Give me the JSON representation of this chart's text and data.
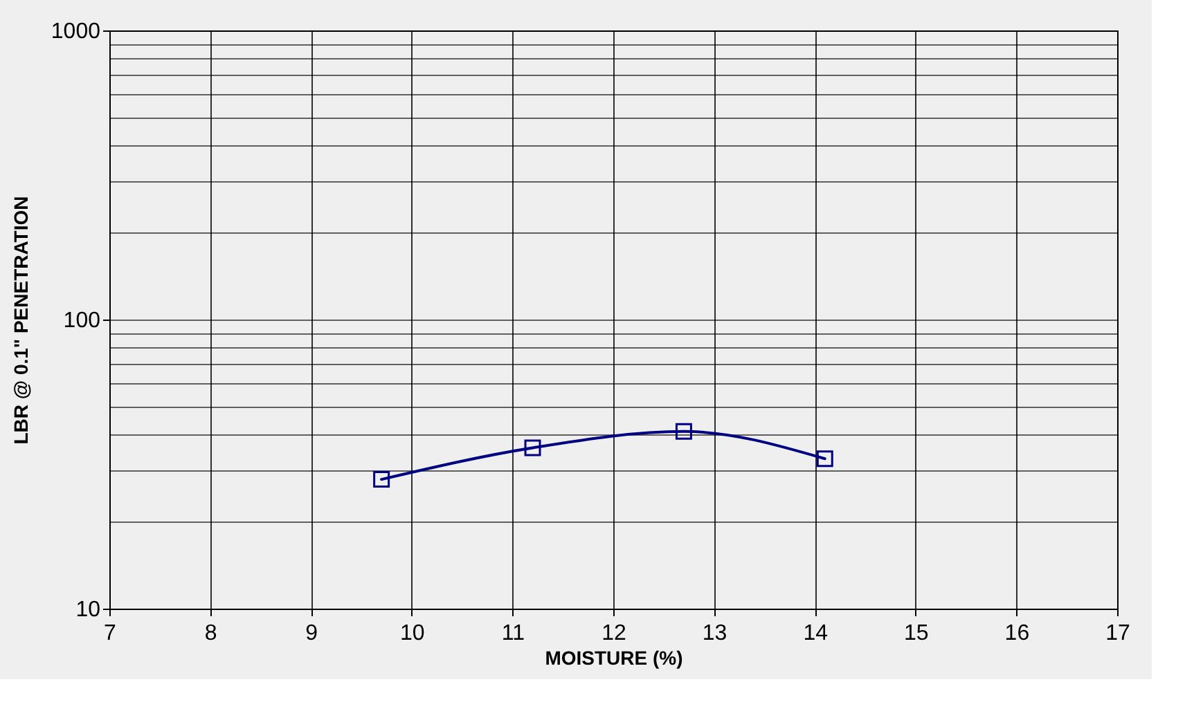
{
  "chart_data": {
    "type": "line",
    "xlabel": "MOISTURE (%)",
    "ylabel": "LBR  @ 0.1\" PENETRATION",
    "x": [
      9.7,
      11.2,
      12.7,
      14.1
    ],
    "series": [
      {
        "color": "#000080",
        "values": [
          28,
          36,
          41,
          33
        ]
      }
    ],
    "xlim": [
      7,
      17
    ],
    "xticks": [
      7,
      8,
      9,
      10,
      11,
      12,
      13,
      14,
      15,
      16,
      17
    ],
    "ylim": [
      10,
      1000
    ],
    "yticks": [
      10,
      100,
      1000
    ],
    "log": "y",
    "grid": true,
    "marker": "square",
    "line_style": "solid"
  }
}
